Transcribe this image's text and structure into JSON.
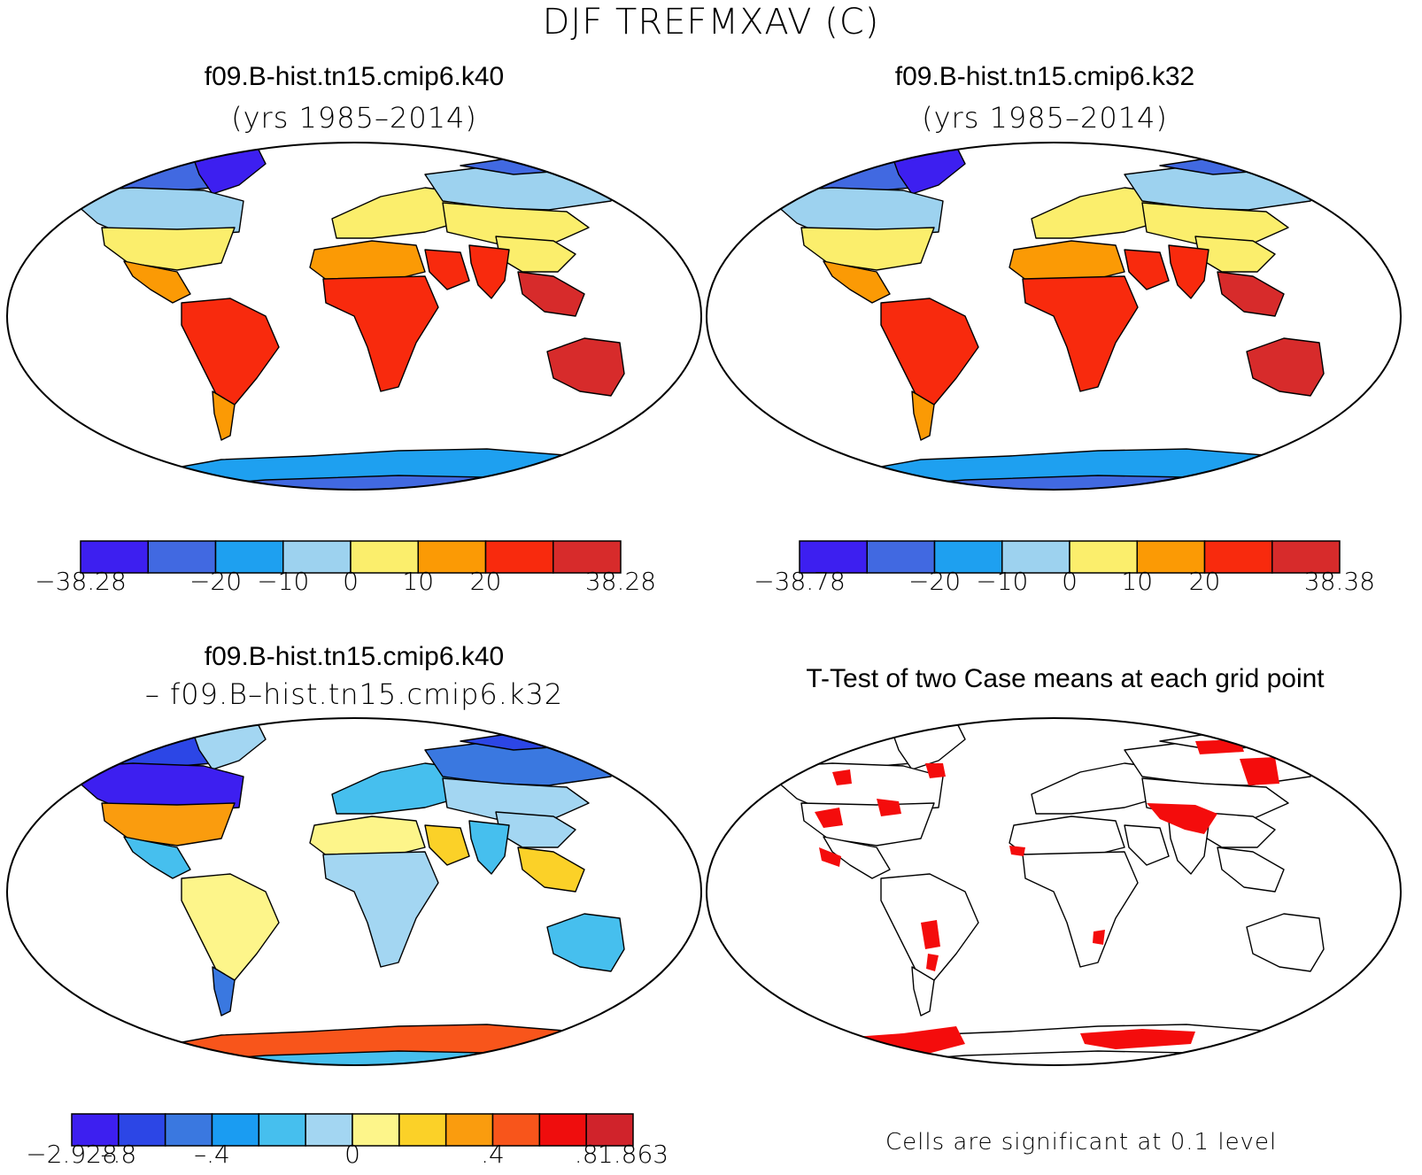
{
  "title": "DJF TREFMXAV (C)",
  "panels": [
    {
      "title_line1": "f09.B-hist.tn15.cmip6.k40",
      "title_line2": "(yrs 1985–2014)"
    },
    {
      "title_line1": "f09.B-hist.tn15.cmip6.k32",
      "title_line2": "(yrs 1985–2014)"
    },
    {
      "title_line1": "f09.B-hist.tn15.cmip6.k40",
      "title_line2": "– f09.B–hist.tn15.cmip6.k32"
    },
    {
      "title_line1": "T-Test of two Case means at each grid point"
    }
  ],
  "footnote": "Cells are significant at 0.1 level",
  "chart_data": [
    {
      "type": "heatmap",
      "title": "f09.B-hist.tn15.cmip6.k40",
      "subtitle": "(yrs 1985–2014)",
      "colorbar": {
        "levels": [
          -38.28,
          -20,
          -10,
          0,
          10,
          20,
          38.28
        ],
        "tick_labels": [
          "−38.28",
          "−20",
          "−10",
          "0",
          "10",
          "20",
          "38.28"
        ],
        "colors": [
          "#3d1ff0",
          "#4169e1",
          "#1ea0f0",
          "#9dd2ef",
          "#fbee6c",
          "#fb9a05",
          "#f82a0d",
          "#d72b2b"
        ]
      }
    },
    {
      "type": "heatmap",
      "title": "f09.B-hist.tn15.cmip6.k32",
      "subtitle": "(yrs 1985–2014)",
      "colorbar": {
        "levels": [
          -38.78,
          -20,
          -10,
          0,
          10,
          20,
          38.38
        ],
        "tick_labels": [
          "−38.78",
          "−20",
          "−10",
          "0",
          "10",
          "20",
          "38.38"
        ],
        "colors": [
          "#3d1ff0",
          "#4169e1",
          "#1ea0f0",
          "#9dd2ef",
          "#fbee6c",
          "#fb9a05",
          "#f82a0d",
          "#d72b2b"
        ]
      }
    },
    {
      "type": "heatmap",
      "title": "f09.B-hist.tn15.cmip6.k40",
      "subtitle": "– f09.B–hist.tn15.cmip6.k32",
      "colorbar": {
        "levels": [
          -2.928,
          -0.8,
          -0.4,
          0,
          0.4,
          0.8,
          1.863
        ],
        "tick_labels": [
          "−2.928",
          "–.8",
          "–.4",
          "0",
          ".4",
          ".8",
          "1.863"
        ],
        "colors": [
          "#3d1ff0",
          "#2c46e6",
          "#3a78e0",
          "#1a9cf2",
          "#46bfee",
          "#a3d6f2",
          "#fdf58a",
          "#fbd128",
          "#fa9c0e",
          "#f8551b",
          "#ef0d0d",
          "#d0232b"
        ]
      }
    },
    {
      "type": "heatmap",
      "title": "T-Test of two Case means at each grid point",
      "note": "Cells are significant at 0.1 level",
      "colors": [
        "#f40c0c"
      ]
    }
  ]
}
